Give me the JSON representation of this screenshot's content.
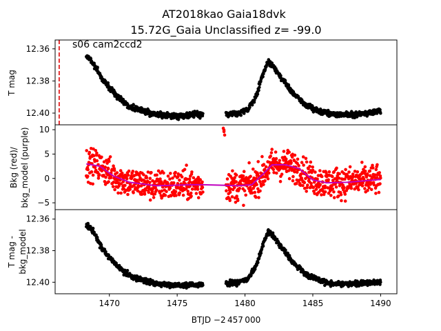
{
  "chart_data": [
    {
      "type": "scatter",
      "title_line1": "AT2018kao  Gaia18dvk",
      "title_line2": "15.72G_Gaia Unclassified z= -99.0",
      "annotation": "s06 cam2ccd2",
      "ylabel": "T mag",
      "y_inverted": true,
      "xlim": [
        1466.0,
        1491.2
      ],
      "ylim": [
        12.3545,
        12.4073
      ],
      "yticks": [
        "12.36",
        "12.38",
        "12.40"
      ],
      "marker_color": "#000000",
      "vline": {
        "x": 1466.3,
        "color": "#e00000",
        "style": "dashed"
      },
      "series": [
        {
          "knots_x": [
            1468.3,
            1468.8,
            1469.5,
            1470.5,
            1471.5,
            1472.5,
            1473.5,
            1475.0,
            1476.0,
            1476.9
          ],
          "knots_y": [
            12.364,
            12.369,
            12.379,
            12.389,
            12.396,
            12.399,
            12.401,
            12.402,
            12.401,
            12.401
          ],
          "noise": 0.0012
        },
        {
          "knots_x": [
            1478.6,
            1479.5,
            1480.2,
            1480.8,
            1481.3,
            1481.7,
            1482.0,
            1482.7,
            1483.5,
            1484.5,
            1485.5,
            1486.5,
            1488.0,
            1490.0
          ],
          "knots_y": [
            12.401,
            12.4,
            12.398,
            12.39,
            12.376,
            12.368,
            12.37,
            12.378,
            12.387,
            12.395,
            12.399,
            12.401,
            12.401,
            12.399
          ],
          "noise": 0.0012
        }
      ]
    },
    {
      "type": "scatter",
      "ylabel_line1": "Bkg (red)/",
      "ylabel_line2": "bkg_model (purple)",
      "xlim": [
        1466.0,
        1491.2
      ],
      "ylim": [
        -6.4,
        11.0
      ],
      "yticks": [
        "−5",
        "0",
        "5",
        "10"
      ],
      "ytick_values": [
        -5,
        0,
        5,
        10
      ],
      "point_color": "#ff0000",
      "model_color": "#bf00bf",
      "series": [
        {
          "knots_x": [
            1468.3,
            1469.3,
            1470.3,
            1471.5,
            1473.5,
            1476.0,
            1476.9
          ],
          "knots_y": [
            3.0,
            2.5,
            0.5,
            -0.8,
            -1.5,
            -1.3,
            -1.3
          ],
          "noise": 2.2
        },
        {
          "knots_x": [
            1478.6,
            1479.5,
            1480.5,
            1481.3,
            1482.0,
            1483.0,
            1484.0,
            1485.0,
            1486.0,
            1487.5,
            1490.0
          ],
          "knots_y": [
            -1.4,
            -1.5,
            -1.3,
            0.8,
            2.8,
            2.8,
            2.0,
            -0.3,
            -0.9,
            -0.8,
            -0.2
          ],
          "noise": 2.2
        }
      ],
      "outliers": [
        {
          "x": 1478.4,
          "y": 10.3
        },
        {
          "x": 1478.45,
          "y": 9.6
        },
        {
          "x": 1478.5,
          "y": 8.9
        },
        {
          "x": 1478.45,
          "y": 9.9
        }
      ]
    },
    {
      "type": "scatter",
      "ylabel_line1": "T mag -",
      "ylabel_line2": "bkg_model",
      "y_inverted": true,
      "xlim": [
        1466.0,
        1491.2
      ],
      "ylim": [
        12.354,
        12.4073
      ],
      "yticks": [
        "12.36",
        "12.38",
        "12.40"
      ],
      "xticks": [
        "1470",
        "1475",
        "1480",
        "1485",
        "1490"
      ],
      "xtick_values": [
        1470,
        1475,
        1480,
        1485,
        1490
      ],
      "xlabel": "BTJD −2 457 000",
      "marker_color": "#000000",
      "series": [
        {
          "knots_x": [
            1468.3,
            1468.8,
            1469.5,
            1470.5,
            1471.5,
            1472.5,
            1473.5,
            1475.0,
            1476.0,
            1476.9
          ],
          "knots_y": [
            12.363,
            12.368,
            12.379,
            12.389,
            12.396,
            12.399,
            12.401,
            12.402,
            12.402,
            12.401
          ],
          "noise": 0.0012
        },
        {
          "knots_x": [
            1478.6,
            1479.5,
            1480.2,
            1480.8,
            1481.3,
            1481.7,
            1482.0,
            1482.7,
            1483.5,
            1484.5,
            1485.5,
            1486.5,
            1488.0,
            1490.0
          ],
          "knots_y": [
            12.401,
            12.4,
            12.398,
            12.39,
            12.377,
            12.368,
            12.37,
            12.378,
            12.387,
            12.395,
            12.399,
            12.401,
            12.401,
            12.4
          ],
          "noise": 0.0012
        }
      ]
    }
  ]
}
